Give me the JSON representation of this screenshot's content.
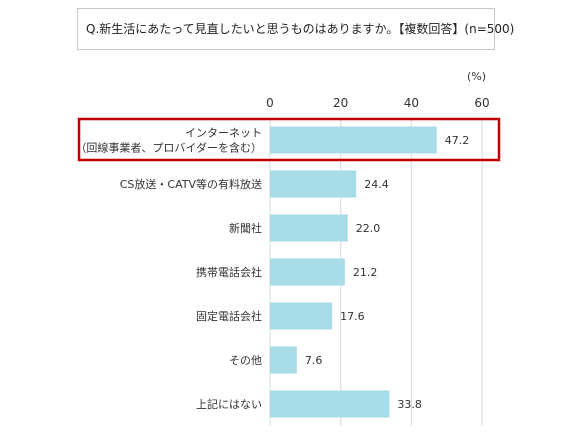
{
  "chart_data": {
    "type": "bar",
    "orientation": "horizontal",
    "title": "Q.新生活にあたって見直したいと思うものはありますか。【複数回答】(n=500)",
    "unit_label": "(%)",
    "xlim": [
      0,
      60
    ],
    "xticks": [
      "0",
      "20",
      "40",
      "60"
    ],
    "grid": true,
    "categories": [
      [
        "インターネット",
        "（回線事業者、プロバイダーを含む）"
      ],
      [
        "CS放送・CATV等の有料放送"
      ],
      [
        "新聞社"
      ],
      [
        "携帯電話会社"
      ],
      [
        "固定電話会社"
      ],
      [
        "その他"
      ],
      [
        "上記にはない"
      ]
    ],
    "values": [
      47.2,
      24.4,
      22.0,
      21.2,
      17.6,
      7.6,
      33.8
    ],
    "value_labels": [
      "47.2",
      "24.4",
      "22.0",
      "21.2",
      "17.6",
      "7.6",
      "33.8"
    ],
    "highlighted_index": 0,
    "colors": {
      "bar": "#a8dbe8",
      "highlight_border": "#c00000",
      "grid": "#d9d9d9"
    }
  }
}
